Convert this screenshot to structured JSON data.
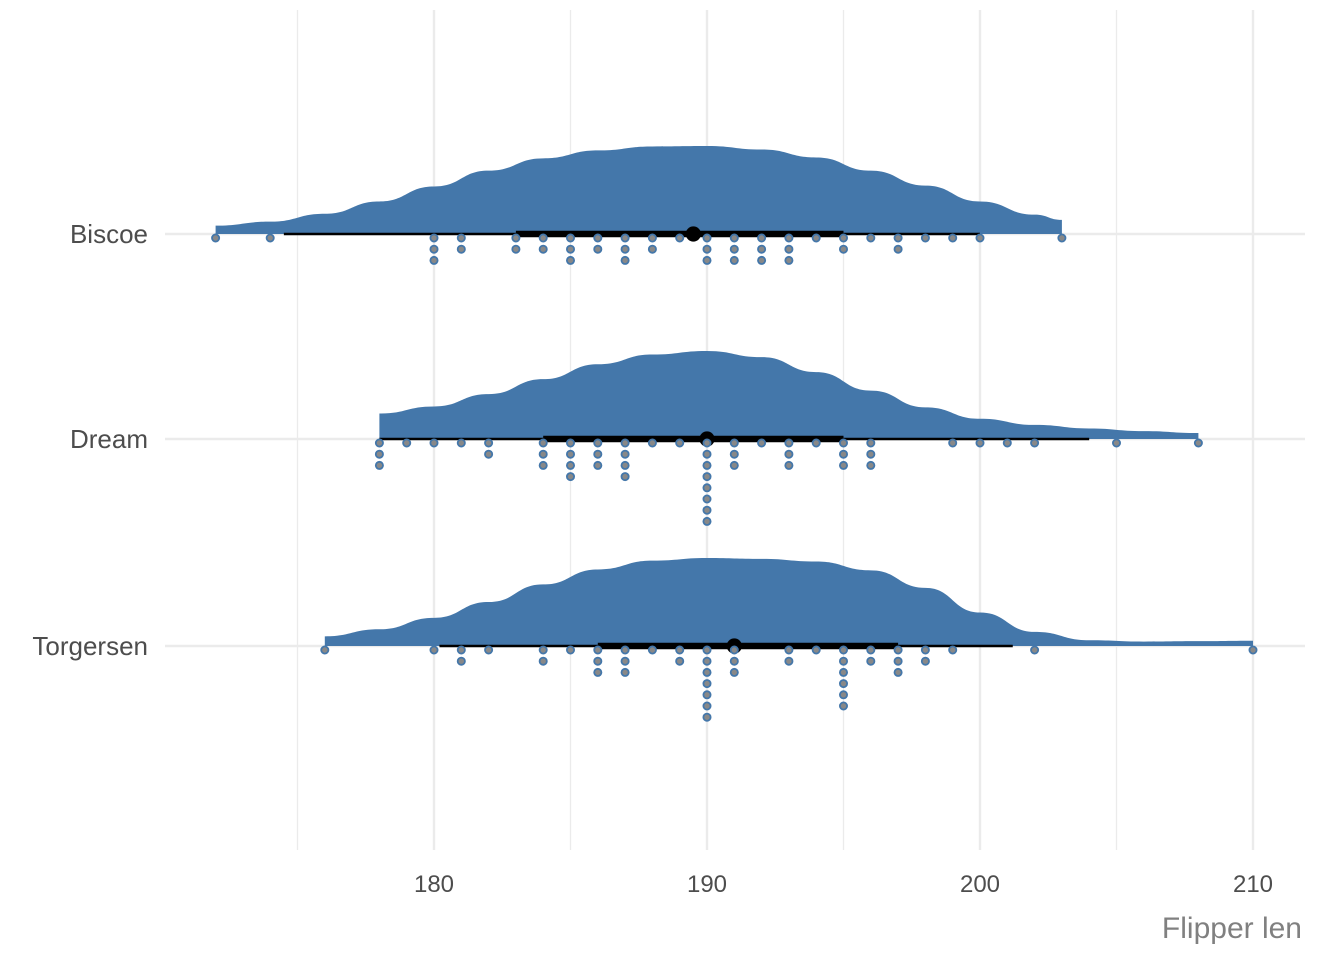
{
  "chart_data": {
    "type": "raincloud",
    "xlabel": "Flipper len",
    "ylabel": "",
    "xlim": [
      169.5,
      212
    ],
    "x_ticks": [
      180,
      190,
      200,
      210
    ],
    "x_tick_labels": [
      "180",
      "190",
      "200",
      "210"
    ],
    "x_minor_grid": [
      175,
      185,
      195,
      205
    ],
    "grid": true,
    "colors": {
      "density_fill": "#4477aa",
      "dot_fill": "#888888",
      "dot_stroke": "#4477aa",
      "interval": "#000000",
      "grid": "#ebebeb",
      "label_text": "#4d4d4d",
      "axis_title": "#808080"
    },
    "categories": [
      "Biscoe",
      "Dream",
      "Torgersen"
    ],
    "series": [
      {
        "name": "Biscoe",
        "density": {
          "x": [
            172,
            174,
            176,
            178,
            180,
            182,
            184,
            186,
            188,
            190,
            192,
            194,
            196,
            198,
            200,
            202,
            203
          ],
          "y": [
            0.095,
            0.14,
            0.23,
            0.37,
            0.54,
            0.72,
            0.86,
            0.95,
            0.995,
            1.0,
            0.96,
            0.87,
            0.72,
            0.55,
            0.37,
            0.22,
            0.16
          ]
        },
        "median": 189.5,
        "interval_66": [
          183,
          195
        ],
        "interval_95": [
          174.5,
          200
        ],
        "dots": [
          [
            172,
            1
          ],
          [
            174,
            1
          ],
          [
            180,
            3
          ],
          [
            181,
            2
          ],
          [
            183,
            2
          ],
          [
            184,
            2
          ],
          [
            185,
            3
          ],
          [
            186,
            2
          ],
          [
            187,
            3
          ],
          [
            188,
            2
          ],
          [
            189,
            1
          ],
          [
            190,
            3
          ],
          [
            191,
            3
          ],
          [
            192,
            3
          ],
          [
            193,
            3
          ],
          [
            194,
            1
          ],
          [
            195,
            2
          ],
          [
            196,
            1
          ],
          [
            197,
            2
          ],
          [
            198,
            1
          ],
          [
            199,
            1
          ],
          [
            200,
            1
          ],
          [
            203,
            1
          ]
        ]
      },
      {
        "name": "Dream",
        "density": {
          "x": [
            178,
            180,
            182,
            184,
            186,
            188,
            190,
            192,
            194,
            196,
            198,
            200,
            202,
            204,
            206,
            208
          ],
          "y": [
            0.29,
            0.37,
            0.51,
            0.68,
            0.85,
            0.96,
            1.0,
            0.93,
            0.76,
            0.55,
            0.36,
            0.23,
            0.16,
            0.12,
            0.09,
            0.068
          ]
        },
        "median": 190,
        "interval_66": [
          184,
          195
        ],
        "interval_95": [
          178,
          204
        ],
        "dots": [
          [
            178,
            3
          ],
          [
            179,
            1
          ],
          [
            180,
            1
          ],
          [
            181,
            1
          ],
          [
            182,
            2
          ],
          [
            184,
            3
          ],
          [
            185,
            4
          ],
          [
            186,
            3
          ],
          [
            187,
            4
          ],
          [
            188,
            1
          ],
          [
            189,
            1
          ],
          [
            190,
            8
          ],
          [
            191,
            3
          ],
          [
            192,
            1
          ],
          [
            193,
            3
          ],
          [
            194,
            1
          ],
          [
            195,
            3
          ],
          [
            196,
            3
          ],
          [
            199,
            1
          ],
          [
            200,
            1
          ],
          [
            201,
            1
          ],
          [
            202,
            1
          ],
          [
            205,
            1
          ],
          [
            208,
            1
          ]
        ]
      },
      {
        "name": "Torgersen",
        "density": {
          "x": [
            176,
            178,
            180,
            182,
            184,
            186,
            188,
            190,
            192,
            194,
            196,
            198,
            200,
            202,
            204,
            206,
            208,
            210
          ],
          "y": [
            0.11,
            0.19,
            0.32,
            0.5,
            0.7,
            0.87,
            0.97,
            1.0,
            0.99,
            0.96,
            0.86,
            0.66,
            0.38,
            0.16,
            0.065,
            0.05,
            0.055,
            0.06
          ]
        },
        "median": 191,
        "interval_66": [
          186,
          197
        ],
        "interval_95": [
          180.2,
          201.2
        ],
        "dots": [
          [
            176,
            1
          ],
          [
            180,
            1
          ],
          [
            181,
            2
          ],
          [
            182,
            1
          ],
          [
            184,
            2
          ],
          [
            185,
            1
          ],
          [
            186,
            3
          ],
          [
            187,
            3
          ],
          [
            188,
            1
          ],
          [
            189,
            2
          ],
          [
            190,
            7
          ],
          [
            191,
            3
          ],
          [
            193,
            2
          ],
          [
            194,
            1
          ],
          [
            195,
            6
          ],
          [
            196,
            2
          ],
          [
            197,
            3
          ],
          [
            198,
            2
          ],
          [
            199,
            1
          ],
          [
            202,
            1
          ],
          [
            210,
            1
          ]
        ]
      }
    ]
  }
}
